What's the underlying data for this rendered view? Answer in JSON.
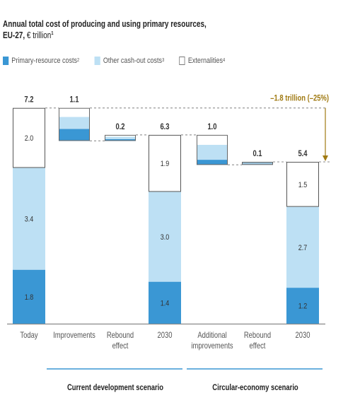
{
  "chart_data": {
    "type": "waterfall",
    "title_line1": "Annual total cost of producing and using primary resources,",
    "title_line2": "EU-27,",
    "unit": "€ trillion",
    "unit_note": "1",
    "legend": [
      {
        "key": "primary",
        "label": "Primary-resource costs",
        "note": "2",
        "color": "#3a97d4"
      },
      {
        "key": "other",
        "label": "Other cash-out costs",
        "note": "3",
        "color": "#bde0f4"
      },
      {
        "key": "externalities",
        "label": "Externalities",
        "note": "4",
        "color": "#ffffff"
      }
    ],
    "categories": [
      "Today",
      "Improvements",
      "Rebound effect",
      "2030",
      "Additional improvements",
      "Rebound effect",
      "2030"
    ],
    "stacked": [
      {
        "category": "Today",
        "total_label": "7.2",
        "primary": 1.8,
        "other": 3.4,
        "externalities": 2.0,
        "labels": {
          "primary": "1.8",
          "other": "3.4",
          "externalities": "2.0"
        }
      },
      {
        "category": "2030",
        "total_label": "6.3",
        "primary": 1.4,
        "other": 3.0,
        "externalities": 1.9,
        "labels": {
          "primary": "1.4",
          "other": "3.0",
          "externalities": "1.9"
        }
      },
      {
        "category": "2030",
        "total_label": "5.4",
        "primary": 1.2,
        "other": 2.7,
        "externalities": 1.5,
        "labels": {
          "primary": "1.2",
          "other": "2.7",
          "externalities": "1.5"
        }
      }
    ],
    "steps": [
      {
        "category": "Improvements",
        "label": "1.1",
        "direction": "decrease",
        "from": 7.2,
        "to": 6.1
      },
      {
        "category": "Rebound effect",
        "label": "0.2",
        "direction": "increase",
        "from": 6.1,
        "to": 6.3
      },
      {
        "category": "Additional improvements",
        "label": "1.0",
        "direction": "decrease",
        "from": 6.3,
        "to": 5.3
      },
      {
        "category": "Rebound effect",
        "label": "0.1",
        "direction": "increase",
        "from": 5.3,
        "to": 5.4
      }
    ],
    "annotation": "–1.8 trillion (–25%)",
    "scenarios": [
      {
        "label": "Current development scenario"
      },
      {
        "label": "Circular-economy scenario"
      }
    ]
  }
}
